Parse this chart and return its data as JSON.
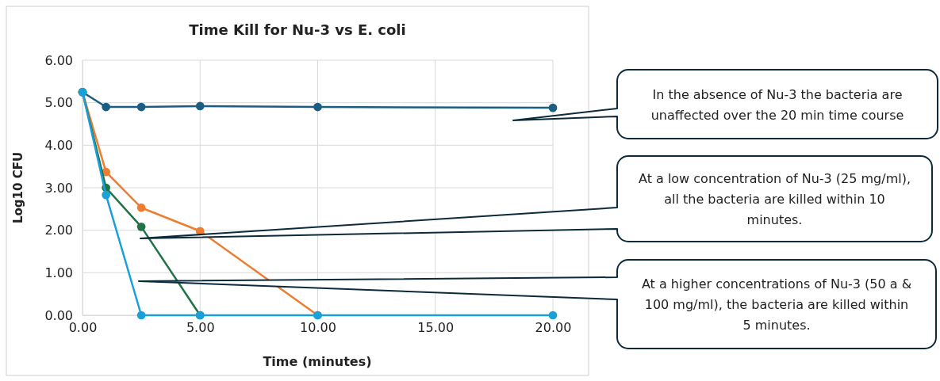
{
  "chart_data": {
    "type": "line",
    "title": "Time Kill for Nu-3 vs E. coli",
    "xlabel": "Time (minutes)",
    "ylabel": "Log10 CFU",
    "xlim": [
      0,
      20
    ],
    "xticks": [
      {
        "value": 0,
        "label": "0.00"
      },
      {
        "value": 5,
        "label": "5.00"
      },
      {
        "value": 10,
        "label": "10.00"
      },
      {
        "value": 15,
        "label": "15.00"
      },
      {
        "value": 20,
        "label": "20.00"
      }
    ],
    "ylim": [
      0,
      6
    ],
    "yticks": [
      {
        "value": 0,
        "label": "0.00"
      },
      {
        "value": 1,
        "label": "1.00"
      },
      {
        "value": 2,
        "label": "2.00"
      },
      {
        "value": 3,
        "label": "3.00"
      },
      {
        "value": 4,
        "label": "4.00"
      },
      {
        "value": 5,
        "label": "5.00"
      },
      {
        "value": 6,
        "label": "6.00"
      }
    ],
    "grid": true,
    "marker": "circle",
    "line_style": "solid",
    "series": [
      {
        "color": "#1b5e82",
        "x": [
          0,
          1,
          2.5,
          5,
          10,
          20
        ],
        "values": [
          5.25,
          4.9,
          4.9,
          4.92,
          4.9,
          4.88
        ]
      },
      {
        "color": "#ed7d31",
        "x": [
          0,
          1,
          2.5,
          5,
          10
        ],
        "values": [
          5.25,
          3.37,
          2.53,
          1.98,
          0
        ]
      },
      {
        "color": "#217346",
        "x": [
          0,
          1,
          2.5,
          5
        ],
        "values": [
          5.25,
          3.0,
          2.08,
          0
        ]
      },
      {
        "color": "#1aa0d8",
        "x": [
          0,
          1,
          2.5,
          5,
          10,
          20
        ],
        "values": [
          5.25,
          2.83,
          0,
          0,
          0,
          0
        ]
      }
    ],
    "annotations": [
      "In the absence of Nu-3 the bacteria are unaffected over the 20 min time course",
      "At a low concentration of Nu-3 (25 mg/ml), all the bacteria are killed within 10 minutes.",
      "At a higher concentrations of Nu-3 (50 a & 100 mg/ml), the bacteria are killed within 5 minutes."
    ]
  }
}
